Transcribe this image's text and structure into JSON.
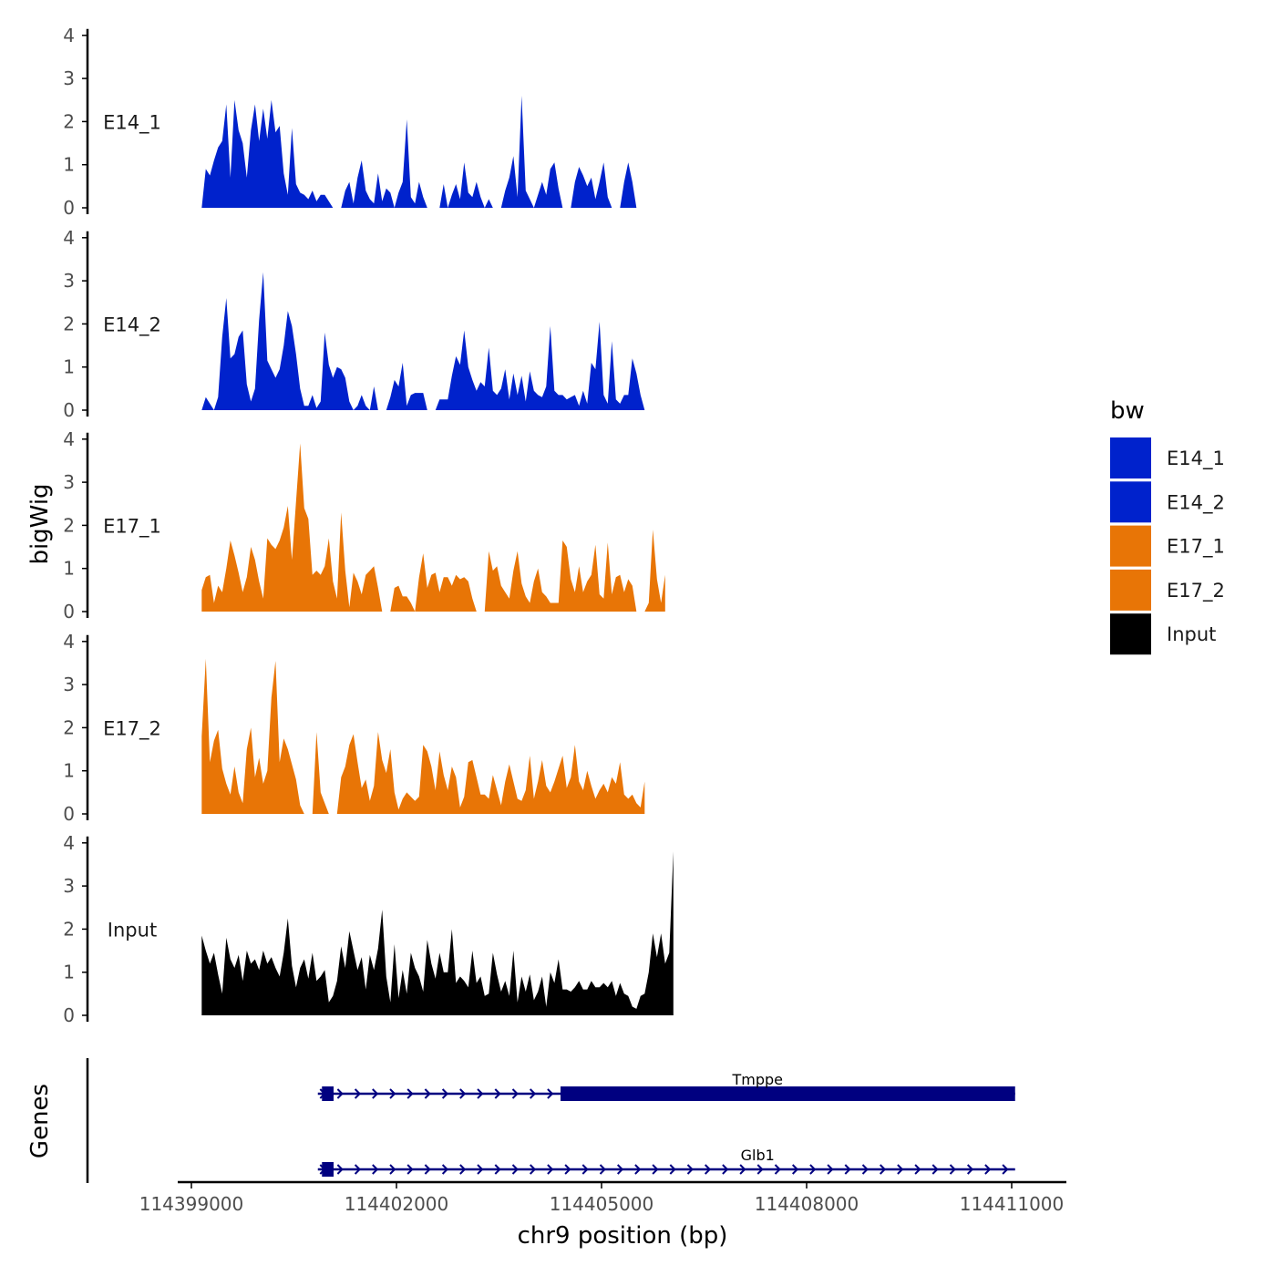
{
  "chart_data": {
    "type": "area",
    "chromosome": "chr9",
    "xlabel": "chr9 position (bp)",
    "ylabel": "bigWig",
    "genes_label": "Genes",
    "xlim": [
      114398800,
      114411800
    ],
    "x_ticks": [
      114399000,
      114402000,
      114405000,
      114408000,
      114411000
    ],
    "x_tick_labels": [
      "114399000",
      "114402000",
      "114405000",
      "114408000",
      "114411000"
    ],
    "ylim": [
      0,
      4
    ],
    "y_ticks": [
      0,
      1,
      2,
      3,
      4
    ],
    "y_tick_labels": [
      "0",
      "1",
      "2",
      "3",
      "4"
    ],
    "x_start": 114399150,
    "x_step": 60,
    "legend": {
      "title": "bw",
      "entries": [
        {
          "label": "E14_1",
          "color": "#0022CC"
        },
        {
          "label": "E14_2",
          "color": "#0022CC"
        },
        {
          "label": "E17_1",
          "color": "#E87506"
        },
        {
          "label": "E17_2",
          "color": "#E87506"
        },
        {
          "label": "Input",
          "color": "#000000"
        }
      ]
    },
    "tracks": [
      {
        "name": "E14_1",
        "color": "#0022CC",
        "values": [
          0,
          0.9,
          0.75,
          1.1,
          1.4,
          1.55,
          2.4,
          0.7,
          2.5,
          1.8,
          1.5,
          0.7,
          1.8,
          2.4,
          1.55,
          2.3,
          1.6,
          2.5,
          1.75,
          1.9,
          0.8,
          0.3,
          1.85,
          0.55,
          0.35,
          0.3,
          0.2,
          0.4,
          0.15,
          0.3,
          0.3,
          0.15,
          0,
          null,
          0,
          0.4,
          0.6,
          0.1,
          0.7,
          1.1,
          0.4,
          0.2,
          0.1,
          0.8,
          0.15,
          0.45,
          0.35,
          0,
          0.35,
          0.6,
          2.05,
          0.25,
          0.1,
          0.6,
          0.25,
          0,
          null,
          null,
          0,
          0.55,
          0,
          0.3,
          0.55,
          0.2,
          1.05,
          0.35,
          0.25,
          0.6,
          0.25,
          0,
          0.2,
          0,
          null,
          0,
          0.4,
          0.7,
          1.2,
          0.25,
          2.6,
          0.4,
          0.2,
          0,
          0.3,
          0.6,
          0.3,
          0.9,
          1.05,
          0.45,
          0,
          null,
          0,
          0.6,
          0.95,
          0.75,
          0.5,
          0.7,
          0.2,
          0.6,
          1.05,
          0.25,
          0,
          null,
          0,
          0.6,
          1.05,
          0.6,
          0
        ]
      },
      {
        "name": "E14_2",
        "color": "#0022CC",
        "values": [
          0,
          0.3,
          0.15,
          0,
          0.3,
          1.7,
          2.6,
          1.2,
          1.3,
          1.7,
          1.85,
          0.6,
          0.2,
          0.5,
          2.1,
          3.2,
          1.15,
          0.95,
          0.75,
          0.95,
          1.5,
          2.3,
          1.95,
          1.3,
          0.5,
          0.1,
          0.1,
          0.35,
          0.05,
          0.2,
          1.8,
          1.05,
          0.75,
          1.0,
          0.95,
          0.75,
          0.2,
          0,
          0.1,
          0.35,
          0.1,
          0,
          0.55,
          0,
          null,
          0,
          0.3,
          0.7,
          0.55,
          1.1,
          0.1,
          0.35,
          0.4,
          0.4,
          0.4,
          0,
          null,
          0,
          0.25,
          0.25,
          0.25,
          0.8,
          1.25,
          1.05,
          1.85,
          1.0,
          0.7,
          0.45,
          0.65,
          0.55,
          1.45,
          0.45,
          0.35,
          0.5,
          0.95,
          0.25,
          0.85,
          0.35,
          0.8,
          0.2,
          0.9,
          0.45,
          0.35,
          0.3,
          0.55,
          1.95,
          0.45,
          0.35,
          0.35,
          0.25,
          0.3,
          0.35,
          0.1,
          0.45,
          0.15,
          1.1,
          0.95,
          2.05,
          0.35,
          0.15,
          1.6,
          0.25,
          0.15,
          0.35,
          0.35,
          1.2,
          0.85,
          0.35,
          0
        ]
      },
      {
        "name": "E17_1",
        "color": "#E87506",
        "values": [
          0.5,
          0.8,
          0.85,
          0.2,
          0.6,
          0.45,
          1.0,
          1.65,
          1.3,
          0.9,
          0.45,
          0.8,
          1.5,
          1.2,
          0.7,
          0.3,
          1.7,
          1.55,
          1.45,
          1.65,
          1.95,
          2.45,
          1.2,
          2.55,
          3.9,
          2.4,
          2.15,
          0.85,
          0.95,
          0.85,
          1.05,
          1.7,
          0.7,
          0.3,
          2.3,
          0.95,
          0.1,
          0.9,
          0.7,
          0.4,
          0.85,
          0.95,
          1.05,
          0.55,
          0,
          null,
          0,
          0.55,
          0.6,
          0.35,
          0.35,
          0.2,
          0,
          0.8,
          1.35,
          0.55,
          0.85,
          0.9,
          0.45,
          0.8,
          0.8,
          0.6,
          0.85,
          0.75,
          0.8,
          0.7,
          0.3,
          0,
          null,
          0,
          1.4,
          0.95,
          1.05,
          0.6,
          0.45,
          0.3,
          0.95,
          1.4,
          0.65,
          0.35,
          0.2,
          0.7,
          1.0,
          0.45,
          0.35,
          0.2,
          0.2,
          0.2,
          1.65,
          1.5,
          0.75,
          0.45,
          1.05,
          0.45,
          0.7,
          0.85,
          1.55,
          0.4,
          0.3,
          1.6,
          0.4,
          0.8,
          0.85,
          0.45,
          0.75,
          0.6,
          0,
          null,
          0,
          0.2,
          1.9,
          0.75,
          0.2,
          0.85
        ]
      },
      {
        "name": "E17_2",
        "color": "#E87506",
        "values": [
          1.8,
          3.6,
          1.2,
          1.7,
          1.95,
          1.05,
          0.7,
          0.45,
          1.1,
          0.5,
          0.25,
          1.5,
          2.0,
          0.85,
          1.3,
          0.7,
          1.0,
          2.7,
          3.55,
          1.2,
          1.75,
          1.5,
          1.15,
          0.8,
          0.2,
          0,
          null,
          0,
          1.9,
          0.5,
          0.25,
          0,
          null,
          0,
          0.85,
          1.1,
          1.6,
          1.85,
          1.2,
          0.6,
          0.8,
          0.3,
          0.65,
          1.9,
          1.25,
          0.95,
          1.5,
          0.5,
          0.1,
          0.35,
          0.5,
          0.4,
          0.3,
          0.4,
          1.6,
          1.45,
          1.1,
          0.55,
          1.45,
          0.9,
          0.55,
          1.1,
          0.85,
          0.15,
          0.4,
          1.2,
          1.25,
          0.85,
          0.45,
          0.45,
          0.35,
          0.9,
          0.55,
          0.2,
          0.75,
          1.15,
          0.75,
          0.35,
          0.3,
          0.55,
          1.35,
          0.35,
          0.75,
          1.25,
          0.65,
          0.5,
          0.75,
          1.05,
          1.35,
          0.6,
          0.85,
          1.6,
          0.75,
          0.55,
          1.0,
          0.65,
          0.35,
          0.55,
          0.7,
          0.5,
          0.85,
          0.7,
          1.2,
          0.45,
          0.35,
          0.45,
          0.25,
          0.15,
          0.75
        ]
      },
      {
        "name": "Input",
        "color": "#000000",
        "values": [
          1.85,
          1.5,
          1.2,
          1.45,
          0.95,
          0.5,
          1.8,
          1.3,
          1.1,
          1.4,
          0.8,
          1.5,
          1.2,
          1.3,
          1.05,
          1.5,
          1.2,
          1.35,
          1.1,
          0.9,
          1.45,
          2.25,
          1.15,
          0.65,
          1.1,
          1.3,
          0.85,
          1.45,
          0.8,
          0.9,
          1.05,
          0.3,
          0.45,
          0.8,
          1.6,
          1.1,
          1.95,
          1.5,
          1.05,
          1.35,
          0.6,
          1.4,
          1.05,
          1.55,
          2.45,
          0.9,
          0.3,
          1.65,
          0.4,
          1.05,
          0.5,
          1.45,
          1.1,
          0.9,
          0.55,
          1.75,
          1.2,
          0.85,
          1.45,
          1.0,
          1.0,
          2.0,
          0.75,
          0.9,
          0.8,
          0.65,
          1.5,
          0.75,
          0.9,
          0.45,
          0.5,
          1.45,
          0.95,
          0.55,
          0.8,
          0.45,
          1.5,
          0.3,
          0.9,
          0.55,
          0.95,
          0.35,
          0.55,
          0.9,
          0.2,
          1.0,
          0.75,
          1.3,
          0.6,
          0.6,
          0.55,
          0.65,
          0.8,
          0.6,
          0.6,
          0.8,
          0.65,
          0.65,
          0.75,
          0.65,
          0.8,
          0.45,
          0.75,
          0.5,
          0.45,
          0.2,
          0.15,
          0.45,
          0.5,
          1.0,
          1.9,
          1.35,
          1.9,
          1.2,
          1.45,
          3.8
        ]
      }
    ],
    "genes": [
      {
        "name": "Tmppe",
        "start": 114400850,
        "end": 114411050,
        "strand": "+",
        "exons": [
          {
            "start": 114400910,
            "end": 114401080
          }
        ],
        "cds": [
          {
            "start": 114404400,
            "end": 114411050
          }
        ]
      },
      {
        "name": "Glb1",
        "start": 114400850,
        "end": 114411050,
        "strand": "+",
        "exons": [
          {
            "start": 114400910,
            "end": 114401080
          }
        ],
        "cds": []
      }
    ]
  }
}
